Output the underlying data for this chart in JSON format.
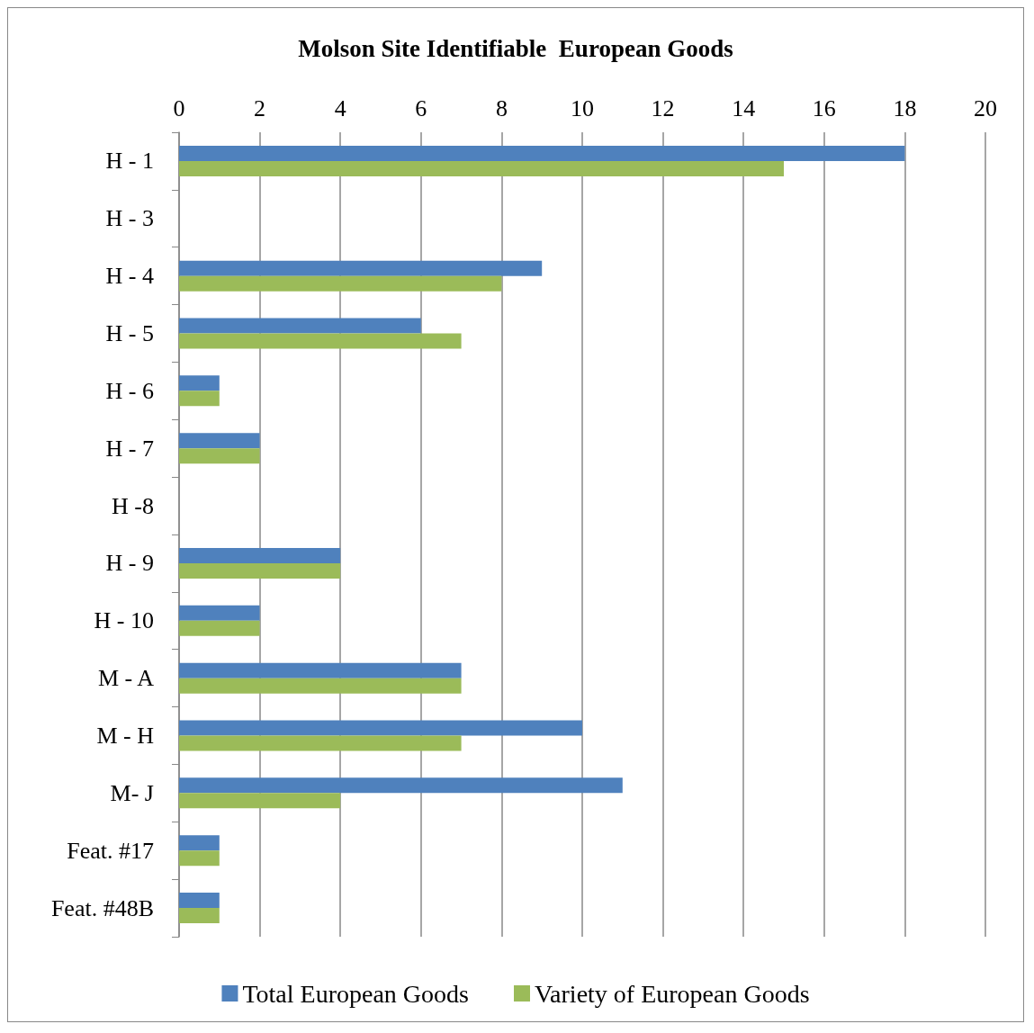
{
  "chart_data": {
    "type": "bar",
    "orientation": "horizontal",
    "title": "Molson Site Identifiable  European Goods",
    "categories": [
      "H - 1",
      "H - 3",
      "H - 4",
      "H - 5",
      "H - 6",
      "H - 7",
      "H -8",
      "H - 9",
      "H - 10",
      "M - A",
      "M - H",
      "M- J",
      "Feat. #17",
      "Feat. #48B"
    ],
    "series": [
      {
        "name": "Total European Goods",
        "color": "#4f81bd",
        "values": [
          18,
          null,
          9,
          6,
          1,
          2,
          null,
          4,
          2,
          7,
          10,
          11,
          1,
          1
        ]
      },
      {
        "name": "Variety of European Goods",
        "color": "#9bbb59",
        "values": [
          15,
          null,
          8,
          7,
          1,
          2,
          null,
          4,
          2,
          7,
          7,
          4,
          1,
          1
        ]
      }
    ],
    "xlim": [
      0,
      20
    ],
    "xticks": [
      0,
      2,
      4,
      6,
      8,
      10,
      12,
      14,
      16,
      18,
      20
    ],
    "grid": "x",
    "legend": "bottom"
  }
}
